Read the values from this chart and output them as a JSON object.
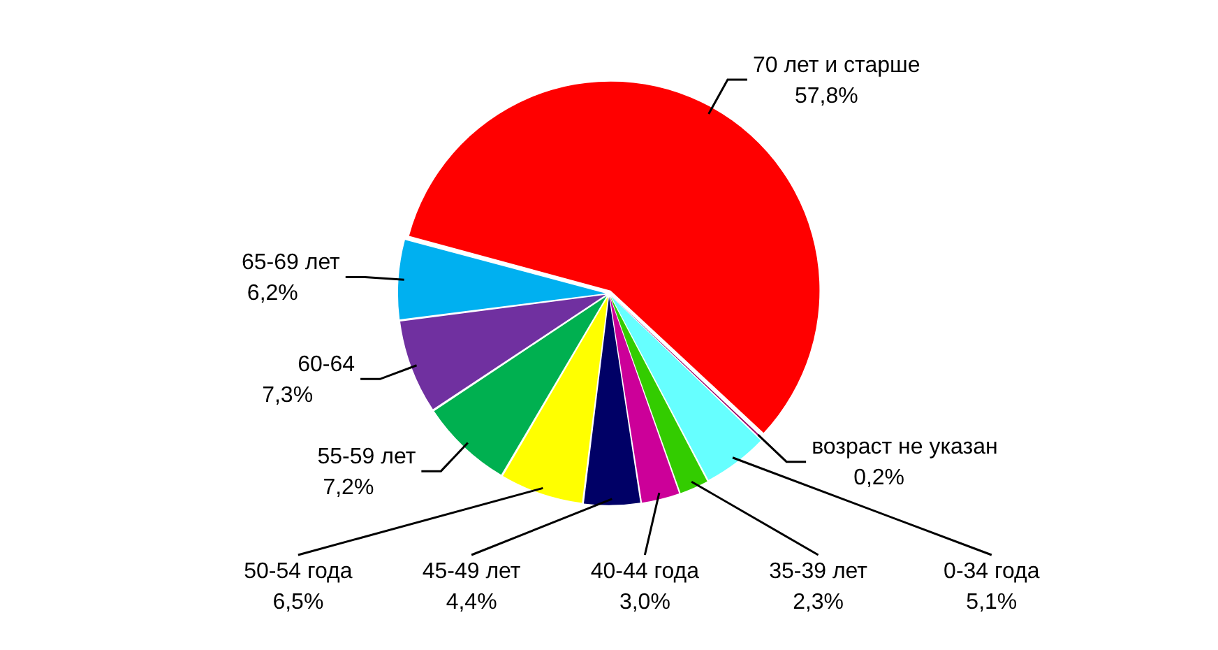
{
  "chart_data": {
    "type": "pie",
    "categories": [
      "70 лет и старше",
      "возраст не указан",
      "0-34 года",
      "35-39 лет",
      "40-44 года",
      "45-49 лет",
      "50-54 года",
      "55-59 лет",
      "60-64",
      "65-69 лет"
    ],
    "values": [
      57.8,
      0.2,
      5.1,
      2.3,
      3.0,
      4.4,
      6.5,
      7.2,
      7.3,
      6.2
    ],
    "value_labels": [
      "57,8%",
      "0,2%",
      "5,1%",
      "2,3%",
      "3,0%",
      "4,4%",
      "6,5%",
      "7,2%",
      "7,3%",
      "6,2%"
    ],
    "colors": [
      "#ff0000",
      "#990066",
      "#66ffff",
      "#33cc00",
      "#cc0099",
      "#000066",
      "#ffff00",
      "#00b050",
      "#7030a0",
      "#00b0f0"
    ],
    "legend": false
  }
}
